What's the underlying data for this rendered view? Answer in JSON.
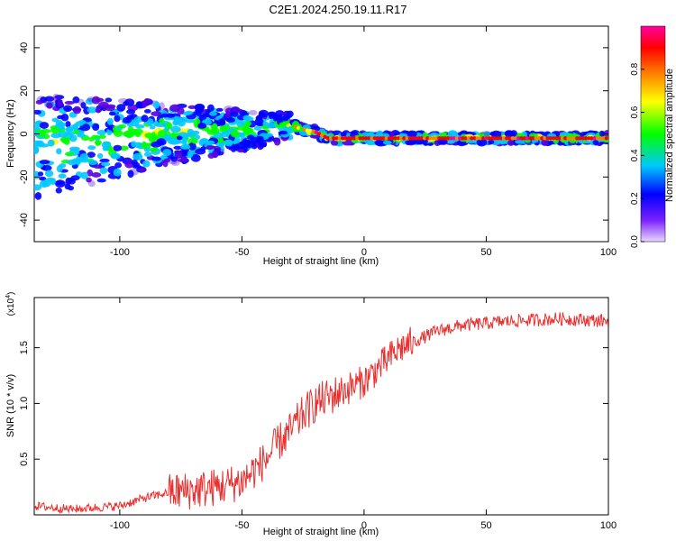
{
  "title": "C2E1.2024.250.19.11.R17",
  "chart_data": [
    {
      "type": "heatmap",
      "xlabel": "Height of straight line (km)",
      "ylabel": "Frequency (Hz)",
      "xlim": [
        -135,
        100
      ],
      "ylim": [
        -50,
        50
      ],
      "xticks": [
        -100,
        -50,
        0,
        50,
        100
      ],
      "yticks": [
        -40,
        -20,
        0,
        20,
        40
      ],
      "colorbar": {
        "label": "Normalized spectral amplitude",
        "range": [
          0,
          1
        ],
        "ticks": [
          "0.0",
          "0.2",
          "0.4",
          "0.6",
          "0.8"
        ],
        "colors": [
          "#e8d8ff",
          "#5a00e0",
          "#0000ff",
          "#00c8ff",
          "#00ff00",
          "#ffff00",
          "#ff8000",
          "#ff0000",
          "#ff00a0"
        ]
      },
      "ridge": {
        "x": [
          -135,
          -110,
          -80,
          -60,
          -45,
          -35,
          -30,
          -25,
          -20,
          -15,
          0,
          30,
          60,
          90,
          100
        ],
        "y": [
          -6,
          -3,
          0,
          1,
          2,
          3,
          4,
          2,
          1,
          -2,
          -2,
          -2,
          -2,
          -2,
          -2
        ]
      }
    },
    {
      "type": "line",
      "xlabel": "Height of straight line (km)",
      "ylabel": "SNR (10 * v/v)",
      "yscale_label": "(x10",
      "yscale_exp": "4",
      "xlim": [
        -135,
        100
      ],
      "ylim": [
        0,
        1.95
      ],
      "xticks": [
        -100,
        -50,
        0,
        50,
        100
      ],
      "yticks": [
        "0.5",
        "1.0",
        "1.5"
      ],
      "series": [
        {
          "color": "#e83030",
          "x": [
            -135,
            -120,
            -100,
            -90,
            -80,
            -70,
            -60,
            -50,
            -45,
            -40,
            -35,
            -30,
            -25,
            -20,
            -15,
            -10,
            -5,
            0,
            5,
            10,
            15,
            20,
            25,
            30,
            40,
            50,
            60,
            70,
            80,
            90,
            100
          ],
          "y": [
            0.08,
            0.05,
            0.08,
            0.15,
            0.2,
            0.22,
            0.25,
            0.3,
            0.4,
            0.5,
            0.65,
            0.75,
            0.9,
            1.0,
            1.05,
            1.1,
            1.15,
            1.2,
            1.3,
            1.4,
            1.5,
            1.55,
            1.6,
            1.65,
            1.7,
            1.72,
            1.74,
            1.75,
            1.76,
            1.75,
            1.74
          ]
        }
      ]
    }
  ]
}
